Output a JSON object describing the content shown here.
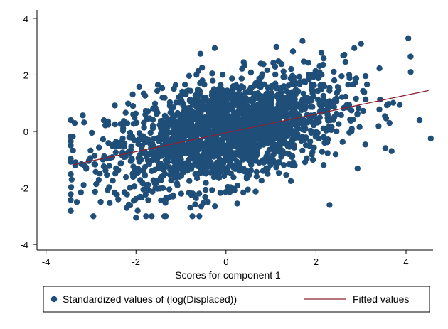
{
  "chart_data": {
    "type": "scatter",
    "title": "",
    "xlabel": "Scores for component 1",
    "ylabel": "",
    "xlim": [
      -4.2,
      4.6
    ],
    "ylim": [
      -4.2,
      4.3
    ],
    "xticks": [
      -4,
      -2,
      0,
      2,
      4
    ],
    "yticks": [
      -4,
      -2,
      0,
      2,
      4
    ],
    "xtick_labels": [
      "-4",
      "-2",
      "0",
      "2",
      "4"
    ],
    "ytick_labels": [
      "-4",
      "-2",
      "0",
      "2",
      "4"
    ],
    "grid": false,
    "legend_position": "bottom",
    "series": [
      {
        "name": "Standardized values of (log(Displaced))",
        "kind": "scatter",
        "color": "#1f4e79",
        "points_description": "about 2000 observations, positively correlated (r ~ 0.44), x mostly in [-3.5, 4.6], y mostly in [-3.1, 3.3]",
        "correlation": 0.44,
        "n_points": 2000,
        "x_mean": 0.0,
        "x_sd": 1.3,
        "y_mean": 0.0,
        "y_sd": 1.0,
        "notable_points": [
          {
            "x": 4.05,
            "y": 3.3
          },
          {
            "x": 3.0,
            "y": 3.1
          },
          {
            "x": 2.85,
            "y": 2.95
          },
          {
            "x": -0.25,
            "y": 2.95
          },
          {
            "x": 1.7,
            "y": 3.2
          },
          {
            "x": 4.1,
            "y": 2.65
          },
          {
            "x": 4.55,
            "y": -0.25
          },
          {
            "x": 4.3,
            "y": 0.4
          },
          {
            "x": -3.35,
            "y": -1.2
          },
          {
            "x": -2.0,
            "y": -3.05
          },
          {
            "x": 2.3,
            "y": -2.6
          },
          {
            "x": -0.55,
            "y": -2.65
          },
          {
            "x": -2.05,
            "y": -2.45
          },
          {
            "x": 0.25,
            "y": -2.55
          }
        ]
      },
      {
        "name": "Fitted values",
        "kind": "line",
        "color": "#8b2232",
        "x": [
          -3.4,
          4.5
        ],
        "y": [
          -1.18,
          1.45
        ]
      }
    ],
    "legend": {
      "entries": [
        {
          "label": "Standardized values of (log(Displaced))",
          "symbol": "dot",
          "color": "#1f4e79"
        },
        {
          "label": "Fitted values",
          "symbol": "line",
          "color": "#8b2232"
        }
      ]
    }
  }
}
